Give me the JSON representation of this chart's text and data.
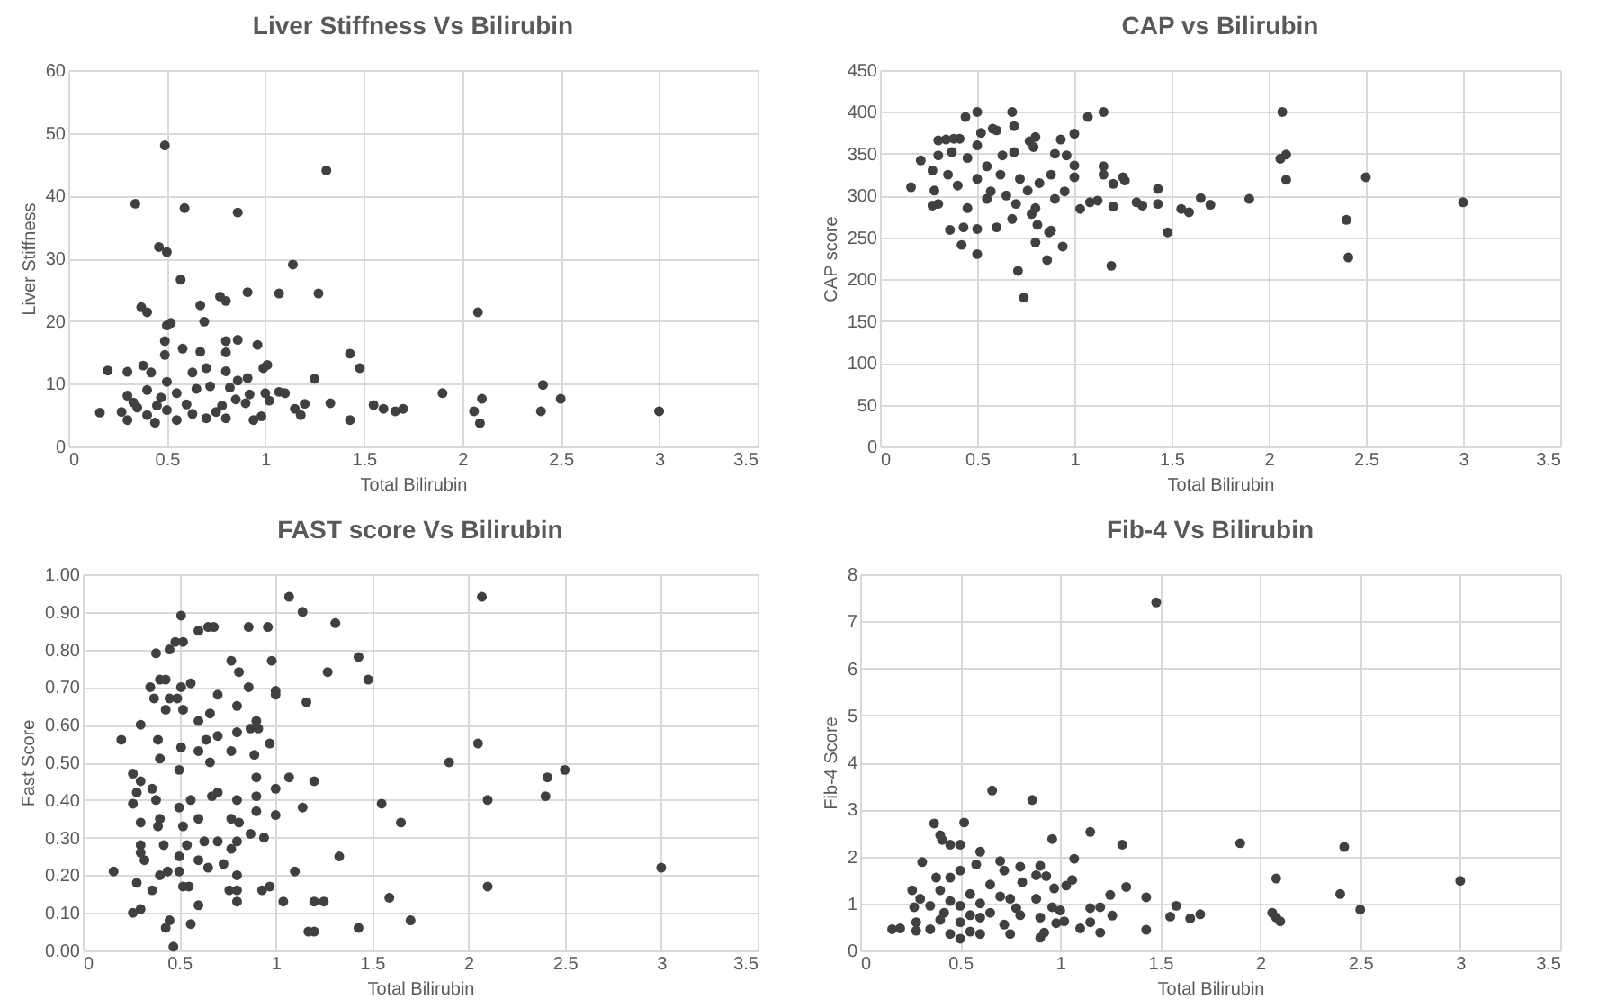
{
  "chart_data": [
    {
      "type": "scatter",
      "title": "Liver Stiffness Vs Bilirubin",
      "xlabel": "Total Bilirubin",
      "ylabel": "Liver Stiffness",
      "color": "#404040",
      "marker": "circle",
      "grid": true,
      "xlim": [
        0,
        3.5
      ],
      "xticks": [
        0,
        0.5,
        1,
        1.5,
        2,
        2.5,
        3,
        3.5
      ],
      "ylim": [
        0,
        60
      ],
      "yticks": [
        0,
        10,
        20,
        30,
        40,
        50,
        60
      ],
      "x": [
        0.49,
        1.31,
        0.34,
        0.59,
        0.86,
        0.46,
        0.5,
        1.14,
        0.57,
        0.91,
        1.07,
        1.27,
        0.77,
        0.8,
        0.37,
        0.4,
        0.67,
        2.08,
        0.69,
        0.5,
        0.52,
        0.49,
        0.8,
        0.86,
        0.96,
        0.58,
        0.67,
        0.8,
        1.43,
        0.49,
        1.48,
        0.99,
        1.01,
        0.2,
        0.3,
        0.38,
        0.42,
        0.63,
        0.7,
        0.8,
        1.25,
        0.86,
        0.91,
        0.5,
        0.3,
        0.4,
        0.55,
        0.65,
        0.72,
        0.82,
        0.92,
        1.0,
        1.07,
        1.1,
        1.9,
        2.41,
        2.5,
        2.1,
        1.33,
        1.55,
        1.6,
        1.66,
        1.7,
        1.15,
        1.2,
        1.02,
        0.9,
        0.78,
        0.6,
        0.45,
        0.35,
        0.27,
        0.16,
        0.3,
        0.4,
        0.5,
        0.55,
        0.63,
        0.7,
        0.8,
        0.94,
        0.98,
        1.18,
        1.43,
        2.06,
        2.09,
        2.4,
        3.0,
        0.44,
        0.75,
        0.85,
        0.33,
        0.47
      ],
      "values": [
        48,
        44,
        38.7,
        38,
        37.3,
        31.8,
        31,
        29,
        26.6,
        24.6,
        24.4,
        24.4,
        23.9,
        23.2,
        22.2,
        21.4,
        22.5,
        21.4,
        19.9,
        19.3,
        19.7,
        16.8,
        16.8,
        17,
        16.2,
        15.6,
        15.1,
        15,
        14.8,
        14.6,
        12.5,
        12.5,
        13,
        12.1,
        11.9,
        12.9,
        11.8,
        11.8,
        12.5,
        12,
        10.8,
        10.5,
        10.9,
        10.3,
        8.1,
        9,
        8.5,
        9.2,
        9.6,
        9.4,
        8.3,
        8.5,
        8.7,
        8.5,
        8.5,
        9.8,
        7.6,
        7.6,
        6.9,
        6.6,
        6,
        5.6,
        6,
        6,
        6.8,
        7.3,
        6.9,
        6.5,
        6.7,
        6.5,
        6.2,
        5.5,
        5.4,
        4.2,
        5,
        5.8,
        4.2,
        5.2,
        4.5,
        4.5,
        4.2,
        4.8,
        5,
        4.2,
        5.6,
        3.7,
        5.6,
        5.6,
        3.8,
        5.5,
        7.5,
        7,
        7.8
      ]
    },
    {
      "type": "scatter",
      "title": "CAP vs Bilirubin",
      "xlabel": "Total Bilirubin",
      "ylabel": "CAP score",
      "color": "#404040",
      "marker": "circle",
      "grid": true,
      "xlim": [
        0,
        3.5
      ],
      "xticks": [
        0,
        0.5,
        1,
        1.5,
        2,
        2.5,
        3,
        3.5
      ],
      "ylim": [
        0,
        450
      ],
      "yticks": [
        0,
        50,
        100,
        150,
        200,
        250,
        300,
        350,
        400,
        450
      ],
      "x": [
        0.5,
        0.68,
        1.15,
        2.07,
        0.44,
        1.07,
        0.69,
        0.58,
        0.6,
        0.52,
        1.0,
        0.8,
        0.3,
        0.34,
        0.38,
        0.41,
        0.77,
        0.93,
        0.5,
        0.79,
        0.21,
        0.3,
        0.37,
        0.45,
        0.63,
        0.69,
        0.9,
        0.96,
        2.06,
        2.09,
        1.15,
        1.0,
        0.55,
        0.27,
        0.35,
        0.62,
        0.72,
        0.88,
        1.25,
        1.26,
        1.15,
        1.2,
        2.09,
        2.5,
        0.16,
        0.28,
        0.4,
        0.5,
        0.57,
        0.65,
        0.76,
        0.82,
        0.95,
        1.0,
        1.43,
        1.65,
        1.9,
        3.0,
        1.32,
        1.35,
        1.43,
        1.55,
        1.59,
        1.7,
        1.03,
        1.08,
        1.12,
        1.2,
        0.27,
        0.3,
        0.45,
        0.55,
        0.7,
        0.8,
        0.9,
        0.68,
        0.78,
        0.81,
        0.36,
        0.43,
        0.5,
        0.6,
        0.87,
        0.88,
        1.48,
        2.4,
        0.42,
        0.8,
        0.94,
        0.5,
        0.86,
        2.41,
        1.19,
        0.71,
        0.74
      ],
      "values": [
        400,
        400,
        400,
        400,
        394,
        394,
        383,
        380,
        378,
        375,
        374,
        370,
        366,
        367,
        368,
        368,
        365,
        367,
        360,
        358,
        342,
        348,
        352,
        345,
        348,
        352,
        350,
        348,
        344,
        349,
        335,
        336,
        335,
        330,
        325,
        325,
        320,
        325,
        322,
        318,
        325,
        314,
        319,
        322,
        310,
        306,
        312,
        320,
        305,
        300,
        306,
        315,
        305,
        322,
        308,
        297,
        296,
        292,
        292,
        288,
        290,
        284,
        280,
        289,
        284,
        292,
        294,
        287,
        288,
        290,
        285,
        296,
        290,
        285,
        296,
        272,
        278,
        265,
        259,
        262,
        260,
        262,
        256,
        258,
        256,
        271,
        241,
        244,
        239,
        230,
        223,
        226,
        216,
        210,
        178
      ]
    },
    {
      "type": "scatter",
      "title": "FAST score Vs Bilirubin",
      "xlabel": "Total Bilirubin",
      "ylabel": "Fast Score",
      "color": "#404040",
      "marker": "circle",
      "grid": true,
      "xlim": [
        0,
        3.5
      ],
      "xticks": [
        0,
        0.5,
        1,
        1.5,
        2,
        2.5,
        3,
        3.5
      ],
      "ylim": [
        0,
        1
      ],
      "yticks": [
        {
          "value": 0,
          "label": "0.00"
        },
        {
          "value": 0.1,
          "label": "0.10"
        },
        {
          "value": 0.2,
          "label": "0.20"
        },
        {
          "value": 0.3,
          "label": "0.30"
        },
        {
          "value": 0.4,
          "label": "0.40"
        },
        {
          "value": 0.5,
          "label": "0.50"
        },
        {
          "value": 0.6,
          "label": "0.60"
        },
        {
          "value": 0.7,
          "label": "0.70"
        },
        {
          "value": 0.8,
          "label": "0.80"
        },
        {
          "value": 0.9,
          "label": "0.90"
        },
        {
          "value": 1,
          "label": "1.00"
        }
      ],
      "x": [
        1.07,
        2.07,
        1.14,
        0.51,
        1.31,
        0.65,
        0.68,
        0.86,
        0.96,
        0.6,
        0.48,
        0.52,
        0.38,
        0.45,
        1.43,
        0.77,
        0.98,
        1.27,
        0.81,
        0.4,
        0.43,
        1.48,
        0.56,
        0.35,
        0.51,
        0.86,
        1.0,
        1.0,
        0.7,
        0.37,
        0.45,
        0.49,
        1.16,
        0.8,
        0.43,
        0.52,
        0.66,
        0.6,
        0.9,
        0.3,
        0.87,
        0.91,
        0.8,
        0.7,
        0.39,
        0.2,
        0.64,
        0.97,
        2.05,
        0.51,
        0.6,
        0.77,
        0.89,
        0.4,
        0.66,
        1.9,
        2.5,
        0.5,
        0.26,
        1.07,
        0.9,
        1.2,
        2.41,
        0.3,
        0.36,
        1.0,
        0.7,
        0.67,
        0.9,
        2.4,
        2.1,
        0.28,
        0.38,
        0.56,
        0.8,
        1.0,
        1.55,
        1.14,
        0.26,
        0.5,
        0.9,
        0.4,
        0.6,
        0.77,
        0.81,
        1.65,
        0.3,
        0.52,
        0.39,
        0.87,
        0.94,
        0.7,
        0.63,
        0.42,
        0.54,
        0.3,
        0.8,
        0.77,
        0.3,
        0.5,
        1.33,
        0.32,
        0.6,
        0.73,
        3.0,
        0.65,
        0.5,
        0.44,
        0.16,
        1.1,
        0.4,
        0.8,
        0.55,
        0.28,
        0.52,
        0.36,
        0.76,
        0.8,
        0.93,
        0.97,
        2.1,
        1.59,
        1.04,
        1.2,
        1.25,
        0.8,
        0.3,
        0.26,
        0.6,
        1.7,
        0.45,
        0.43,
        0.56,
        1.43,
        1.17,
        1.2,
        0.47
      ],
      "values": [
        0.94,
        0.94,
        0.9,
        0.89,
        0.87,
        0.86,
        0.86,
        0.86,
        0.86,
        0.85,
        0.82,
        0.82,
        0.79,
        0.8,
        0.78,
        0.77,
        0.77,
        0.74,
        0.74,
        0.72,
        0.72,
        0.72,
        0.71,
        0.7,
        0.7,
        0.7,
        0.69,
        0.68,
        0.68,
        0.67,
        0.67,
        0.67,
        0.66,
        0.65,
        0.64,
        0.64,
        0.63,
        0.61,
        0.61,
        0.6,
        0.59,
        0.59,
        0.58,
        0.57,
        0.56,
        0.56,
        0.56,
        0.55,
        0.55,
        0.54,
        0.53,
        0.53,
        0.52,
        0.51,
        0.5,
        0.5,
        0.48,
        0.48,
        0.47,
        0.46,
        0.46,
        0.45,
        0.46,
        0.45,
        0.43,
        0.43,
        0.42,
        0.41,
        0.41,
        0.41,
        0.4,
        0.42,
        0.4,
        0.4,
        0.4,
        0.36,
        0.39,
        0.38,
        0.39,
        0.38,
        0.37,
        0.35,
        0.35,
        0.35,
        0.34,
        0.34,
        0.34,
        0.33,
        0.33,
        0.31,
        0.3,
        0.29,
        0.29,
        0.28,
        0.28,
        0.28,
        0.29,
        0.27,
        0.26,
        0.25,
        0.25,
        0.24,
        0.24,
        0.23,
        0.22,
        0.22,
        0.21,
        0.21,
        0.21,
        0.21,
        0.2,
        0.2,
        0.17,
        0.18,
        0.17,
        0.16,
        0.16,
        0.16,
        0.16,
        0.17,
        0.17,
        0.14,
        0.13,
        0.13,
        0.13,
        0.13,
        0.11,
        0.1,
        0.12,
        0.08,
        0.08,
        0.06,
        0.07,
        0.06,
        0.05,
        0.05,
        0.01
      ]
    },
    {
      "type": "scatter",
      "title": "Fib-4 Vs Bilirubin",
      "xlabel": "Total Bilirubin",
      "ylabel": "Fib-4 Score",
      "color": "#404040",
      "marker": "circle",
      "grid": true,
      "xlim": [
        0,
        3.5
      ],
      "xticks": [
        0,
        0.5,
        1,
        1.5,
        2,
        2.5,
        3,
        3.5
      ],
      "ylim": [
        0,
        8
      ],
      "yticks": [
        0,
        1,
        2,
        3,
        4,
        5,
        6,
        7,
        8
      ],
      "x": [
        1.48,
        0.66,
        0.86,
        0.37,
        0.52,
        1.15,
        0.4,
        0.41,
        0.45,
        0.5,
        0.96,
        1.31,
        1.9,
        2.42,
        0.6,
        1.07,
        0.31,
        0.7,
        0.58,
        0.9,
        0.8,
        0.72,
        0.5,
        0.38,
        0.45,
        0.88,
        0.93,
        2.08,
        3.0,
        1.06,
        0.81,
        1.03,
        1.33,
        0.97,
        0.26,
        0.4,
        0.65,
        0.55,
        0.7,
        1.25,
        2.4,
        1.43,
        0.3,
        0.45,
        0.6,
        0.75,
        0.88,
        0.35,
        0.5,
        0.78,
        0.96,
        1.0,
        1.15,
        1.2,
        1.58,
        2.5,
        0.27,
        0.42,
        0.55,
        0.65,
        0.8,
        2.06,
        2.08,
        2.1,
        1.7,
        1.65,
        1.55,
        1.26,
        0.28,
        0.4,
        0.5,
        0.6,
        0.72,
        0.9,
        0.98,
        1.02,
        1.15,
        1.1,
        0.16,
        0.2,
        0.28,
        0.35,
        0.45,
        0.55,
        0.6,
        0.75,
        0.92,
        1.2,
        1.43,
        0.5,
        0.9
      ],
      "values": [
        7.4,
        3.4,
        3.2,
        2.7,
        2.72,
        2.52,
        2.45,
        2.35,
        2.25,
        2.25,
        2.37,
        2.25,
        2.28,
        2.2,
        2.1,
        1.95,
        1.88,
        1.9,
        1.83,
        1.8,
        1.78,
        1.7,
        1.7,
        1.55,
        1.55,
        1.6,
        1.58,
        1.53,
        1.48,
        1.5,
        1.45,
        1.38,
        1.35,
        1.32,
        1.28,
        1.28,
        1.4,
        1.2,
        1.15,
        1.18,
        1.2,
        1.13,
        1.1,
        1.05,
        1.0,
        1.1,
        1.1,
        0.95,
        0.95,
        0.9,
        0.92,
        0.85,
        0.9,
        0.92,
        0.95,
        0.87,
        0.92,
        0.8,
        0.75,
        0.8,
        0.75,
        0.8,
        0.7,
        0.62,
        0.77,
        0.68,
        0.72,
        0.74,
        0.6,
        0.65,
        0.6,
        0.7,
        0.55,
        0.7,
        0.58,
        0.62,
        0.6,
        0.47,
        0.45,
        0.47,
        0.42,
        0.45,
        0.35,
        0.4,
        0.35,
        0.35,
        0.38,
        0.38,
        0.44,
        0.25,
        0.27
      ]
    }
  ]
}
